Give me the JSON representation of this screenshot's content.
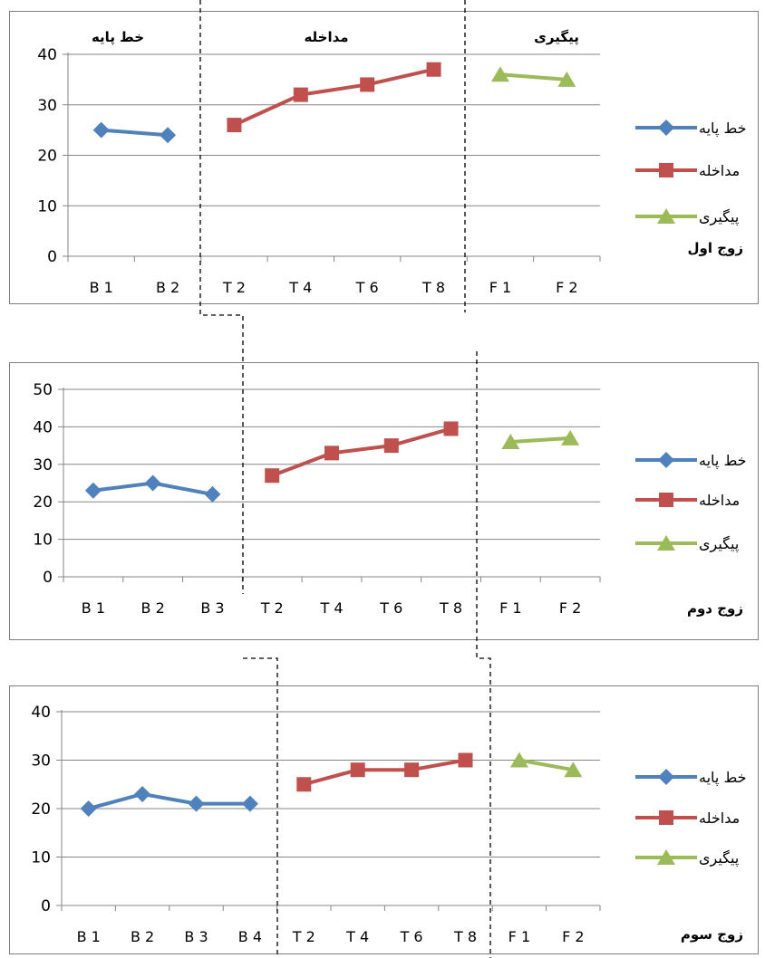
{
  "legend_labels": {
    "baseline": "خط پایه",
    "intervention": "مداخله",
    "followup": "پیگیری"
  },
  "phase_headers": {
    "baseline": "خط پایه",
    "intervention": "مداخله",
    "followup": "پیگیری"
  },
  "colors": {
    "baseline": "#4F81BD",
    "intervention": "#C0504D",
    "followup": "#9BBB59",
    "axis": "#868686",
    "grid": "#868686",
    "frame": "#7f7f7f",
    "phase_line": "#000000"
  },
  "chart_data": [
    {
      "type": "line",
      "panel_label": "زوج اول",
      "categories": [
        "B 1",
        "B 2",
        "T 2",
        "T 4",
        "T 6",
        "T 8",
        "F 1",
        "F 2"
      ],
      "ylim": [
        0,
        40
      ],
      "yticks": [
        0,
        10,
        20,
        30,
        40
      ],
      "grid": true,
      "legend_position": "right",
      "series": [
        {
          "key": "baseline",
          "marker": "diamond",
          "values": [
            25,
            24,
            null,
            null,
            null,
            null,
            null,
            null
          ]
        },
        {
          "key": "intervention",
          "marker": "square",
          "values": [
            null,
            null,
            26,
            32,
            34,
            37,
            null,
            null
          ]
        },
        {
          "key": "followup",
          "marker": "triangle",
          "values": [
            null,
            null,
            null,
            null,
            null,
            null,
            36,
            35
          ]
        }
      ]
    },
    {
      "type": "line",
      "panel_label": "زوج دوم",
      "categories": [
        "B 1",
        "B 2",
        "B 3",
        "T 2",
        "T 4",
        "T 6",
        "T 8",
        "F 1",
        "F 2"
      ],
      "ylim": [
        0,
        50
      ],
      "yticks": [
        0,
        10,
        20,
        30,
        40,
        50
      ],
      "grid": true,
      "legend_position": "right",
      "series": [
        {
          "key": "baseline",
          "marker": "diamond",
          "values": [
            23,
            25,
            22,
            null,
            null,
            null,
            null,
            null,
            null
          ]
        },
        {
          "key": "intervention",
          "marker": "square",
          "values": [
            null,
            null,
            null,
            27,
            33,
            35,
            39.5,
            null,
            null
          ]
        },
        {
          "key": "followup",
          "marker": "triangle",
          "values": [
            null,
            null,
            null,
            null,
            null,
            null,
            null,
            36,
            37
          ]
        }
      ]
    },
    {
      "type": "line",
      "panel_label": "زوج سوم",
      "categories": [
        "B 1",
        "B 2",
        "B 3",
        "B 4",
        "T 2",
        "T 4",
        "T 6",
        "T 8",
        "F 1",
        "F 2"
      ],
      "ylim": [
        0,
        40
      ],
      "yticks": [
        0,
        10,
        20,
        30,
        40
      ],
      "grid": true,
      "legend_position": "right",
      "series": [
        {
          "key": "baseline",
          "marker": "diamond",
          "values": [
            20,
            23,
            21,
            21,
            null,
            null,
            null,
            null,
            null,
            null
          ]
        },
        {
          "key": "intervention",
          "marker": "square",
          "values": [
            null,
            null,
            null,
            null,
            25,
            28,
            28,
            30,
            null,
            null
          ]
        },
        {
          "key": "followup",
          "marker": "triangle",
          "values": [
            null,
            null,
            null,
            null,
            null,
            null,
            null,
            null,
            30,
            28
          ]
        }
      ]
    }
  ]
}
